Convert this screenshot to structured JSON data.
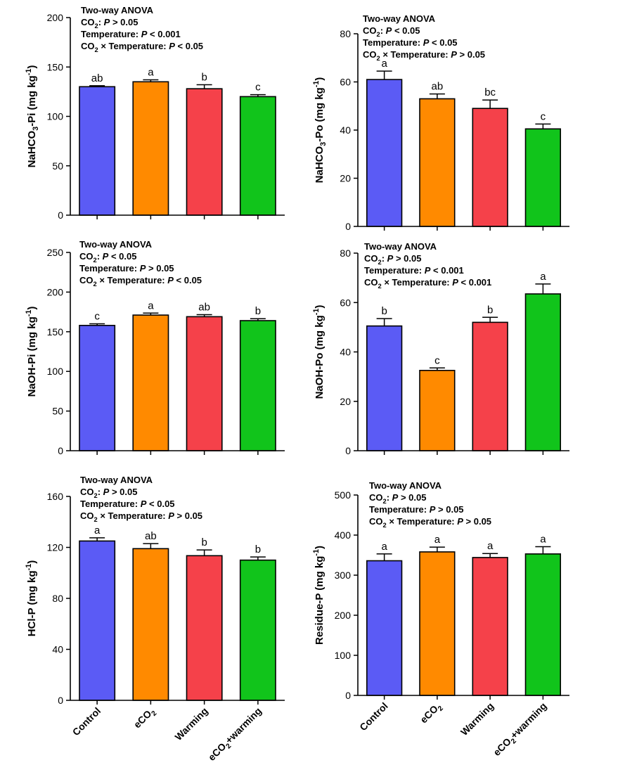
{
  "figure": {
    "categories": [
      "Control",
      "eCO2",
      "Warming",
      "eCO2+warming"
    ],
    "category_display": [
      {
        "main": "Control",
        "sub": ""
      },
      {
        "main": "eCO",
        "sub": "2"
      },
      {
        "main": "Warming",
        "sub": ""
      },
      {
        "main": "eCO",
        "sub": "2",
        "tail": "+warming"
      }
    ],
    "bar_colors": [
      "#5b5bf5",
      "#ff8a00",
      "#f5414a",
      "#11c41b"
    ]
  },
  "chart_data": [
    {
      "type": "bar",
      "ylabel": "NaHCO3-Pi (mg kg-1)",
      "ylabel_parts": [
        {
          "t": "NaHCO"
        },
        {
          "t": "3",
          "sub": true
        },
        {
          "t": "-Pi (mg kg"
        },
        {
          "t": "-1",
          "sup": true
        },
        {
          "t": ")"
        }
      ],
      "ylim": [
        0,
        200
      ],
      "yticks": [
        0,
        50,
        100,
        150,
        200
      ],
      "categories": [
        "Control",
        "eCO2",
        "Warming",
        "eCO2+warming"
      ],
      "values": [
        130,
        135,
        128,
        120
      ],
      "errors": [
        1,
        2,
        4,
        2
      ],
      "letters": [
        "ab",
        "a",
        "b",
        "c"
      ],
      "anova_lines": [
        [
          {
            "t": "Two-way ANOVA"
          }
        ],
        [
          {
            "t": "CO"
          },
          {
            "t": "2",
            "sub": true
          },
          {
            "t": ": "
          },
          {
            "t": "P",
            "i": true
          },
          {
            "t": " > 0.05"
          }
        ],
        [
          {
            "t": "Temperature: "
          },
          {
            "t": "P",
            "i": true
          },
          {
            "t": " < 0.001"
          }
        ],
        [
          {
            "t": "CO"
          },
          {
            "t": "2",
            "sub": true
          },
          {
            "t": " × Temperature: "
          },
          {
            "t": "P",
            "i": true
          },
          {
            "t": " < 0.05"
          }
        ]
      ]
    },
    {
      "type": "bar",
      "ylabel": "NaHCO3-Po (mg kg-1)",
      "ylabel_parts": [
        {
          "t": "NaHCO"
        },
        {
          "t": "3",
          "sub": true
        },
        {
          "t": "-Po (mg kg"
        },
        {
          "t": "-1",
          "sup": true
        },
        {
          "t": ")"
        }
      ],
      "ylim": [
        0,
        80
      ],
      "yticks": [
        0,
        20,
        40,
        60,
        80
      ],
      "categories": [
        "Control",
        "eCO2",
        "Warming",
        "eCO2+warming"
      ],
      "values": [
        61,
        53,
        49,
        40.5
      ],
      "errors": [
        3.5,
        2,
        3.5,
        2
      ],
      "letters": [
        "a",
        "ab",
        "bc",
        "c"
      ],
      "anova_lines": [
        [
          {
            "t": "Two-way ANOVA"
          }
        ],
        [
          {
            "t": "CO"
          },
          {
            "t": "2",
            "sub": true
          },
          {
            "t": ": "
          },
          {
            "t": "P",
            "i": true
          },
          {
            "t": " < 0.05"
          }
        ],
        [
          {
            "t": "Temperature: "
          },
          {
            "t": "P",
            "i": true
          },
          {
            "t": " < 0.05"
          }
        ],
        [
          {
            "t": "CO"
          },
          {
            "t": "2",
            "sub": true
          },
          {
            "t": " × Temperature: "
          },
          {
            "t": "P",
            "i": true
          },
          {
            "t": " > 0.05"
          }
        ]
      ]
    },
    {
      "type": "bar",
      "ylabel": "NaOH-Pi (mg kg-1)",
      "ylabel_parts": [
        {
          "t": "NaOH-Pi (mg kg"
        },
        {
          "t": "-1",
          "sup": true
        },
        {
          "t": ")"
        }
      ],
      "ylim": [
        0,
        250
      ],
      "yticks": [
        0,
        50,
        100,
        150,
        200,
        250
      ],
      "categories": [
        "Control",
        "eCO2",
        "Warming",
        "eCO2+warming"
      ],
      "values": [
        158,
        171,
        169,
        164
      ],
      "errors": [
        2,
        2.5,
        2.5,
        2.5
      ],
      "letters": [
        "c",
        "a",
        "ab",
        "b"
      ],
      "anova_lines": [
        [
          {
            "t": "Two-way ANOVA"
          }
        ],
        [
          {
            "t": "CO"
          },
          {
            "t": "2",
            "sub": true
          },
          {
            "t": ": "
          },
          {
            "t": "P",
            "i": true
          },
          {
            "t": " < 0.05"
          }
        ],
        [
          {
            "t": "Temperature: "
          },
          {
            "t": "P",
            "i": true
          },
          {
            "t": " > 0.05"
          }
        ],
        [
          {
            "t": "CO"
          },
          {
            "t": "2",
            "sub": true
          },
          {
            "t": " × Temperature: "
          },
          {
            "t": "P",
            "i": true
          },
          {
            "t": " < 0.05"
          }
        ]
      ]
    },
    {
      "type": "bar",
      "ylabel": "NaOH-Po (mg kg-1)",
      "ylabel_parts": [
        {
          "t": "NaOH-Po (mg kg"
        },
        {
          "t": "-1",
          "sup": true
        },
        {
          "t": ")"
        }
      ],
      "ylim": [
        0,
        80
      ],
      "yticks": [
        0,
        20,
        40,
        60,
        80
      ],
      "categories": [
        "Control",
        "eCO2",
        "Warming",
        "eCO2+warming"
      ],
      "values": [
        50.5,
        32.5,
        52,
        63.5
      ],
      "errors": [
        3,
        1,
        2,
        4
      ],
      "letters": [
        "b",
        "c",
        "b",
        "a"
      ],
      "anova_lines": [
        [
          {
            "t": "Two-way ANOVA"
          }
        ],
        [
          {
            "t": "CO"
          },
          {
            "t": "2",
            "sub": true
          },
          {
            "t": ": "
          },
          {
            "t": "P",
            "i": true
          },
          {
            "t": " > 0.05"
          }
        ],
        [
          {
            "t": "Temperature: "
          },
          {
            "t": "P",
            "i": true
          },
          {
            "t": " < 0.001"
          }
        ],
        [
          {
            "t": "CO"
          },
          {
            "t": "2",
            "sub": true
          },
          {
            "t": " × Temperature: "
          },
          {
            "t": "P",
            "i": true
          },
          {
            "t": " < 0.001"
          }
        ]
      ]
    },
    {
      "type": "bar",
      "ylabel": "HCl-P (mg kg-1)",
      "ylabel_parts": [
        {
          "t": "HCl-P (mg kg"
        },
        {
          "t": "-1",
          "sup": true
        },
        {
          "t": ")"
        }
      ],
      "ylim": [
        0,
        160
      ],
      "yticks": [
        0,
        40,
        80,
        120,
        160
      ],
      "categories": [
        "Control",
        "eCO2",
        "Warming",
        "eCO2+warming"
      ],
      "values": [
        125,
        119,
        113.5,
        110
      ],
      "errors": [
        2.5,
        4,
        4.5,
        2.5
      ],
      "letters": [
        "a",
        "ab",
        "b",
        "b"
      ],
      "anova_lines": [
        [
          {
            "t": "Two-way ANOVA"
          }
        ],
        [
          {
            "t": "CO"
          },
          {
            "t": "2",
            "sub": true
          },
          {
            "t": ": "
          },
          {
            "t": "P",
            "i": true
          },
          {
            "t": " > 0.05"
          }
        ],
        [
          {
            "t": "Temperature: "
          },
          {
            "t": "P",
            "i": true
          },
          {
            "t": " < 0.05"
          }
        ],
        [
          {
            "t": "CO"
          },
          {
            "t": "2",
            "sub": true
          },
          {
            "t": " × Temperature: "
          },
          {
            "t": "P",
            "i": true
          },
          {
            "t": " > 0.05"
          }
        ]
      ]
    },
    {
      "type": "bar",
      "ylabel": "Residue-P (mg kg-1)",
      "ylabel_parts": [
        {
          "t": "Residue-P (mg kg"
        },
        {
          "t": "-1",
          "sup": true
        },
        {
          "t": ")"
        }
      ],
      "ylim": [
        0,
        500
      ],
      "yticks": [
        0,
        100,
        200,
        300,
        400,
        500
      ],
      "categories": [
        "Control",
        "eCO2",
        "Warming",
        "eCO2+warming"
      ],
      "values": [
        336,
        358,
        344,
        353
      ],
      "errors": [
        17,
        12,
        10,
        18
      ],
      "letters": [
        "a",
        "a",
        "a",
        "a"
      ],
      "anova_lines": [
        [
          {
            "t": "Two-way ANOVA"
          }
        ],
        [
          {
            "t": "CO"
          },
          {
            "t": "2",
            "sub": true
          },
          {
            "t": ": "
          },
          {
            "t": "P",
            "i": true
          },
          {
            "t": " > 0.05"
          }
        ],
        [
          {
            "t": "Temperature: "
          },
          {
            "t": "P",
            "i": true
          },
          {
            "t": " > 0.05"
          }
        ],
        [
          {
            "t": "CO"
          },
          {
            "t": "2",
            "sub": true
          },
          {
            "t": " × Temperature: "
          },
          {
            "t": "P",
            "i": true
          },
          {
            "t": " > 0.05"
          }
        ]
      ]
    }
  ]
}
